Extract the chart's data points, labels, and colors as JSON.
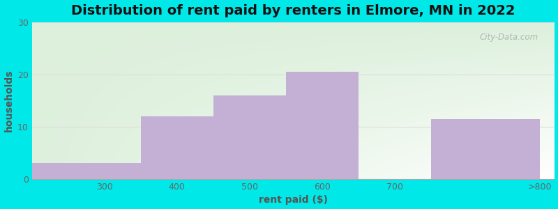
{
  "title": "Distribution of rent paid by renters in Elmore, MN in 2022",
  "xlabel": "rent paid ($)",
  "ylabel": "households",
  "bin_edges": [
    200,
    350,
    450,
    550,
    650,
    750,
    900
  ],
  "bin_labels": [
    "300",
    "400",
    "500",
    "600",
    "700",
    ">800"
  ],
  "values": [
    3,
    12,
    16,
    20.5,
    0,
    11.5
  ],
  "bar_color": "#c4b0d5",
  "bar_edgecolor": "#c4b0d5",
  "ylim": [
    0,
    30
  ],
  "yticks": [
    0,
    10,
    20,
    30
  ],
  "xticks": [
    300,
    400,
    500,
    600,
    700
  ],
  "xlim": [
    200,
    920
  ],
  "background_outer": "#00e8e8",
  "bg_color_topleft": "#ddf0dc",
  "bg_color_bottomright": "#ffffff",
  "title_fontsize": 14,
  "axis_label_fontsize": 10,
  "tick_fontsize": 9,
  "watermark": "City-Data.com",
  "grid_color": "#dddddd"
}
